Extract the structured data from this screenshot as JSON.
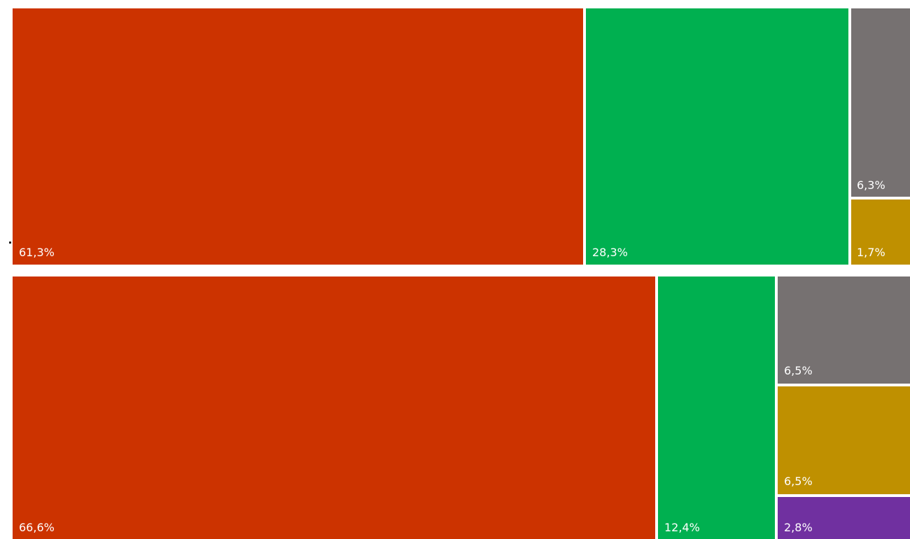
{
  "chart_data": [
    {
      "type": "treemap",
      "tiles": [
        {
          "label": "61,3%",
          "value": 61.3,
          "color": "#CC3300"
        },
        {
          "label": "28,3%",
          "value": 28.3,
          "color": "#00B050"
        },
        {
          "label": "6,3%",
          "value": 6.3,
          "color": "#767171"
        },
        {
          "label": "1,7%",
          "value": 1.7,
          "color": "#BF9000"
        }
      ]
    },
    {
      "type": "treemap",
      "tiles": [
        {
          "label": "66,6%",
          "value": 66.6,
          "color": "#CC3300"
        },
        {
          "label": "12,4%",
          "value": 12.4,
          "color": "#00B050"
        },
        {
          "label": "6,5%",
          "value": 6.5,
          "color": "#767171"
        },
        {
          "label": "6,5%",
          "value": 6.5,
          "color": "#BF9000"
        },
        {
          "label": "2,8%",
          "value": 2.8,
          "color": "#7030A0"
        }
      ]
    }
  ]
}
